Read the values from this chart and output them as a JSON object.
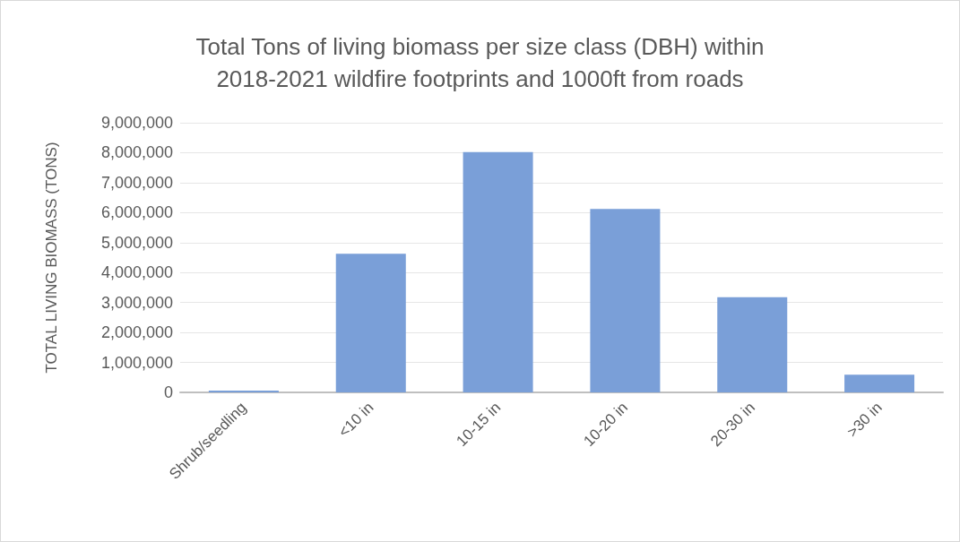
{
  "chart_data": {
    "type": "bar",
    "title": "Total Tons of living biomass per size class (DBH) within\n2018-2021 wildfire footprints and 1000ft from roads",
    "ylabel": "TOTAL LIVING BIOMASS (TONS)",
    "categories": [
      "Shrub/seedling",
      "<10 in",
      "10-15 in",
      "10-20 in",
      "20-30 in",
      ">30 in"
    ],
    "values": [
      60000,
      4630000,
      8020000,
      6120000,
      3180000,
      590000
    ],
    "color": "#7a9fd8",
    "ylim": [
      0,
      9000000
    ],
    "yticks": [
      0,
      {
        "value": 1000000,
        "label": "1,000,000"
      },
      {
        "value": 2000000,
        "label": "2,000,000"
      },
      {
        "value": 3000000,
        "label": "3,000,000"
      },
      {
        "value": 4000000,
        "label": "4,000,000"
      },
      {
        "value": 5000000,
        "label": "5,000,000"
      },
      {
        "value": 6000000,
        "label": "6,000,000"
      },
      {
        "value": 7000000,
        "label": "7,000,000"
      },
      {
        "value": 8000000,
        "label": "8,000,000"
      },
      {
        "value": 9000000,
        "label": "9,000,000"
      }
    ],
    "grid": "y"
  }
}
